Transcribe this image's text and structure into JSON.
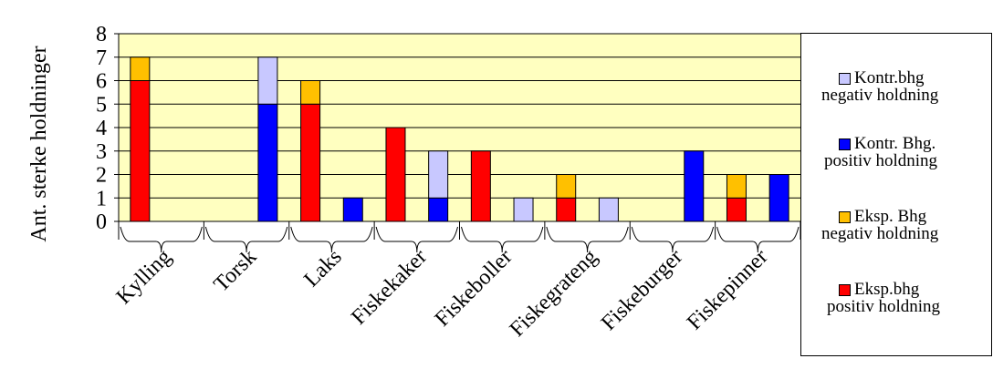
{
  "chart_data": {
    "type": "bar",
    "stacked": true,
    "ylabel": "Ant. sterke holdninger",
    "ylim": [
      0,
      8
    ],
    "yticks": [
      "0",
      "1",
      "2",
      "3",
      "4",
      "5",
      "6",
      "7",
      "8"
    ],
    "grid": true,
    "plot_background": "#ffffc0",
    "legend_position": "right",
    "categories": [
      "Kylling",
      "Torsk",
      "Laks",
      "Fiskekaker",
      "Fiskeboller",
      "Fiskegrateng",
      "Fiskeburger",
      "Fiskepinner"
    ],
    "groups": [
      "Eksp. bhg",
      "Kontr. bhg"
    ],
    "series": [
      {
        "name": "Eksp.bhg positiv holdning",
        "color": "#ff0000",
        "group": "Eksp. bhg",
        "values": [
          6,
          0,
          5,
          4,
          3,
          1,
          0,
          1
        ]
      },
      {
        "name": "Eksp. Bhg negativ holdning",
        "color": "#ffc000",
        "group": "Eksp. bhg",
        "values": [
          1,
          0,
          1,
          0,
          0,
          1,
          0,
          1
        ]
      },
      {
        "name": "Kontr. Bhg. positiv holdning",
        "color": "#0000ff",
        "group": "Kontr. bhg",
        "values": [
          0,
          5,
          1,
          1,
          0,
          0,
          3,
          2
        ]
      },
      {
        "name": "Kontr.bhg negativ holdning",
        "color": "#c8c8ff",
        "group": "Kontr. bhg",
        "values": [
          0,
          2,
          0,
          2,
          1,
          1,
          0,
          0
        ]
      }
    ],
    "legend": [
      {
        "line1": "Kontr.bhg",
        "line2": "negativ holdning",
        "color": "#c8c8ff"
      },
      {
        "line1": "Kontr. Bhg.",
        "line2": "positiv holdning",
        "color": "#0000ff"
      },
      {
        "line1": "Eksp. Bhg",
        "line2": "negativ holdning",
        "color": "#ffc000"
      },
      {
        "line1": "Eksp.bhg",
        "line2": "positiv holdning",
        "color": "#ff0000"
      }
    ]
  }
}
